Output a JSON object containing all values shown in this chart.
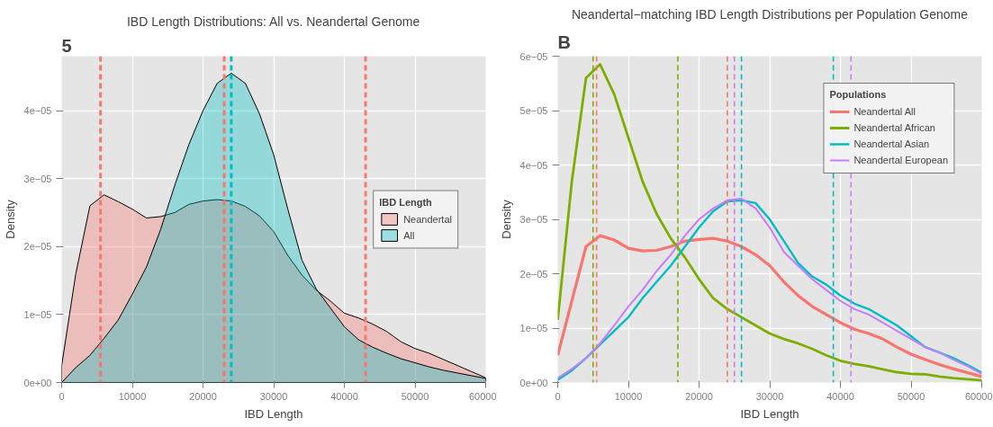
{
  "chart_data": [
    {
      "type": "area",
      "title": "IBD Length Distributions: All vs. Neandertal Genome",
      "xlabel": "IBD Length",
      "ylabel": "Density",
      "legend_title": "IBD Length",
      "legend": "right",
      "grid": true,
      "annotations": [
        "5"
      ],
      "x": [
        0,
        2000,
        4000,
        6000,
        8000,
        10000,
        12000,
        14000,
        16000,
        18000,
        20000,
        22000,
        24000,
        26000,
        28000,
        30000,
        32000,
        34000,
        36000,
        38000,
        40000,
        42000,
        44000,
        46000,
        48000,
        50000,
        52000,
        54000,
        56000,
        58000,
        60000
      ],
      "xlim": [
        0,
        60000
      ],
      "xticks": [
        0,
        10000,
        20000,
        30000,
        40000,
        50000,
        60000
      ],
      "ylim": [
        0,
        4.8e-05
      ],
      "yticks": [
        {
          "value": 0,
          "label": "0e+00"
        },
        {
          "value": 1e-05,
          "label": "1e−05"
        },
        {
          "value": 2e-05,
          "label": "2e−05"
        },
        {
          "value": 3e-05,
          "label": "3e−05"
        },
        {
          "value": 4e-05,
          "label": "4e−05"
        }
      ],
      "series": [
        {
          "name": "Neandertal",
          "color": "#f8766d",
          "values": [
            2.5e-06,
            1.6e-05,
            2.6e-05,
            2.76e-05,
            2.66e-05,
            2.55e-05,
            2.42e-05,
            2.44e-05,
            2.5e-05,
            2.62e-05,
            2.67e-05,
            2.69e-05,
            2.67e-05,
            2.59e-05,
            2.45e-05,
            2.22e-05,
            1.87e-05,
            1.58e-05,
            1.36e-05,
            1.2e-05,
            1.02e-05,
            9.5e-06,
            8.6e-06,
            7.5e-06,
            6e-06,
            5e-06,
            4.3e-06,
            3.4e-06,
            2.5e-06,
            1.6e-06,
            7e-07
          ]
        },
        {
          "name": "All",
          "color": "#00bfc4",
          "values": [
            0,
            2.2e-06,
            4e-06,
            6.5e-06,
            9.2e-06,
            1.3e-05,
            1.7e-05,
            2.25e-05,
            2.9e-05,
            3.5e-05,
            4e-05,
            4.4e-05,
            4.55e-05,
            4.4e-05,
            3.95e-05,
            3.35e-05,
            2.55e-05,
            1.8e-05,
            1.38e-05,
            1.1e-05,
            8.2e-06,
            6.3e-06,
            5.2e-06,
            4.3e-06,
            3.5e-06,
            2.9e-06,
            2.3e-06,
            1.8e-06,
            1.4e-06,
            1e-06,
            6e-07
          ]
        }
      ],
      "ref_lines": [
        {
          "axis": "x",
          "value": 5500,
          "color": "#f8766d",
          "line_style": "dashed"
        },
        {
          "axis": "x",
          "value": 23000,
          "color": "#f8766d",
          "line_style": "dashed"
        },
        {
          "axis": "x",
          "value": 43000,
          "color": "#f8766d",
          "line_style": "dashed"
        },
        {
          "axis": "x",
          "value": 24000,
          "color": "#00bfc4",
          "line_style": "dashed"
        }
      ]
    },
    {
      "type": "line",
      "title": "Neandertal−matching IBD Length Distributions per Population Genome",
      "xlabel": "IBD Length",
      "ylabel": "Density",
      "legend_title": "Populations",
      "legend": "top right",
      "grid": true,
      "annotations": [
        "B"
      ],
      "x": [
        0,
        2000,
        4000,
        6000,
        8000,
        10000,
        12000,
        14000,
        16000,
        18000,
        20000,
        22000,
        24000,
        26000,
        28000,
        30000,
        32000,
        34000,
        36000,
        38000,
        40000,
        42000,
        44000,
        46000,
        48000,
        50000,
        52000,
        54000,
        56000,
        58000,
        60000
      ],
      "xlim": [
        0,
        60000
      ],
      "xticks": [
        0,
        10000,
        20000,
        30000,
        40000,
        50000,
        60000
      ],
      "ylim": [
        0,
        6e-05
      ],
      "yticks": [
        {
          "value": 0,
          "label": "0e+00"
        },
        {
          "value": 1e-05,
          "label": "1e−05"
        },
        {
          "value": 2e-05,
          "label": "2e−05"
        },
        {
          "value": 3e-05,
          "label": "3e−05"
        },
        {
          "value": 4e-05,
          "label": "4e−05"
        },
        {
          "value": 5e-05,
          "label": "5e−05"
        },
        {
          "value": 6e-05,
          "label": "6e−05"
        }
      ],
      "series": [
        {
          "name": "Neandertal All",
          "color": "#f8766d",
          "values": [
            5e-06,
            1.5e-05,
            2.5e-05,
            2.7e-05,
            2.62e-05,
            2.47e-05,
            2.42e-05,
            2.43e-05,
            2.5e-05,
            2.6e-05,
            2.63e-05,
            2.65e-05,
            2.6e-05,
            2.5e-05,
            2.35e-05,
            2.15e-05,
            1.85e-05,
            1.6e-05,
            1.4e-05,
            1.25e-05,
            1.1e-05,
            9.8e-06,
            9e-06,
            8e-06,
            6.5e-06,
            5.2e-06,
            4.2e-06,
            3.3e-06,
            2.5e-06,
            1.8e-06,
            1.1e-06
          ]
        },
        {
          "name": "Neandertal African",
          "color": "#7cae00",
          "values": [
            1.15e-05,
            3.7e-05,
            5.6e-05,
            5.85e-05,
            5.3e-05,
            4.5e-05,
            3.7e-05,
            3.1e-05,
            2.65e-05,
            2.3e-05,
            1.9e-05,
            1.55e-05,
            1.35e-05,
            1.2e-05,
            1.05e-05,
            9e-06,
            8e-06,
            7.2e-06,
            6.2e-06,
            5e-06,
            4e-06,
            3.4e-06,
            3e-06,
            2.4e-06,
            1.9e-06,
            1.6e-06,
            1.5e-06,
            1.1e-06,
            8e-07,
            6e-07,
            4e-07
          ]
        },
        {
          "name": "Neandertal Asian",
          "color": "#00bfc4",
          "values": [
            5e-07,
            2.2e-06,
            4.5e-06,
            7e-06,
            9.5e-06,
            1.2e-05,
            1.55e-05,
            1.85e-05,
            2.15e-05,
            2.5e-05,
            2.85e-05,
            3.15e-05,
            3.33e-05,
            3.35e-05,
            3.3e-05,
            3e-05,
            2.6e-05,
            2.2e-05,
            1.95e-05,
            1.8e-05,
            1.6e-05,
            1.45e-05,
            1.35e-05,
            1.2e-05,
            1.05e-05,
            8.5e-06,
            6.5e-06,
            5.5e-06,
            4.5e-06,
            3.2e-06,
            1.8e-06
          ]
        },
        {
          "name": "Neandertal European",
          "color": "#c77cff",
          "values": [
            8e-07,
            2.5e-06,
            4.5e-06,
            7.2e-06,
            1.05e-05,
            1.4e-05,
            1.7e-05,
            2.05e-05,
            2.35e-05,
            2.7e-05,
            3e-05,
            3.2e-05,
            3.35e-05,
            3.38e-05,
            3.2e-05,
            2.85e-05,
            2.4e-05,
            2.15e-05,
            1.9e-05,
            1.7e-05,
            1.5e-05,
            1.35e-05,
            1.25e-05,
            1.1e-05,
            9.5e-06,
            8e-06,
            6.5e-06,
            5.5e-06,
            4.2e-06,
            3e-06,
            1.6e-06
          ]
        }
      ],
      "ref_lines": [
        {
          "axis": "x",
          "value": 5500,
          "color": "#f8766d",
          "line_style": "dashed"
        },
        {
          "axis": "x",
          "value": 24000,
          "color": "#f8766d",
          "line_style": "dashed"
        },
        {
          "axis": "x",
          "value": 5000,
          "color": "#7cae00",
          "line_style": "dashed"
        },
        {
          "axis": "x",
          "value": 17000,
          "color": "#7cae00",
          "line_style": "dashed"
        },
        {
          "axis": "x",
          "value": 26000,
          "color": "#00bfc4",
          "line_style": "dashed"
        },
        {
          "axis": "x",
          "value": 39000,
          "color": "#00bfc4",
          "line_style": "dashed"
        },
        {
          "axis": "x",
          "value": 25000,
          "color": "#c77cff",
          "line_style": "dashed"
        },
        {
          "axis": "x",
          "value": 41500,
          "color": "#c77cff",
          "line_style": "dashed"
        }
      ]
    }
  ]
}
